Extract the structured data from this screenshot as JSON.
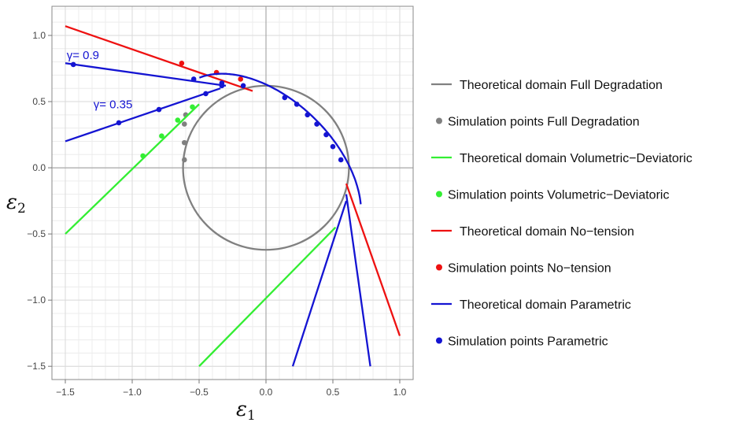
{
  "chart_data": {
    "type": "line",
    "xlabel": "ε",
    "xlabel_sub": "1",
    "ylabel": "ε",
    "ylabel_sub": "2",
    "xlim": [
      -1.6,
      1.1
    ],
    "ylim": [
      -1.6,
      1.22
    ],
    "xticks": [
      -1.5,
      -1.0,
      -0.5,
      0.0,
      0.5,
      1.0
    ],
    "yticks": [
      -1.5,
      -1.0,
      -0.5,
      0.0,
      0.5,
      1.0
    ],
    "xtick_labels": [
      "−1.5",
      "−1.0",
      "−0.5",
      "0.0",
      "0.5",
      "1.0"
    ],
    "ytick_labels": [
      "−1.5",
      "−1.0",
      "−0.5",
      "0.0",
      "0.5",
      "1.0"
    ],
    "grid": true,
    "legend_position": "right",
    "annotations": [
      {
        "text": "γ= 0.9",
        "x": -1.49,
        "y": 0.82
      },
      {
        "text": "γ= 0.35",
        "x": -1.29,
        "y": 0.45
      }
    ],
    "series": [
      {
        "name": "Theoretical domain Full Degradation",
        "kind": "line",
        "color": "#808080",
        "shape": "ellipse",
        "center": [
          0.0,
          0.0
        ],
        "semi_axes": [
          0.62,
          0.62
        ],
        "rotation_deg": 0
      },
      {
        "name": "Simulation points Full Degradation",
        "kind": "points",
        "color": "#808080",
        "points": [
          [
            -0.61,
            0.06
          ],
          [
            -0.61,
            0.19
          ],
          [
            -0.61,
            0.33
          ],
          [
            -0.6,
            0.4
          ]
        ]
      },
      {
        "name": "Theoretical domain Volumetric−Deviatoric",
        "kind": "segments",
        "color": "#33ee33",
        "segments": [
          [
            [
              -1.5,
              -0.5
            ],
            [
              -0.5,
              0.48
            ]
          ],
          [
            [
              -0.5,
              -1.5
            ],
            [
              0.52,
              -0.45
            ]
          ]
        ]
      },
      {
        "name": "Simulation points Volumetric−Deviatoric",
        "kind": "points",
        "color": "#33ee33",
        "points": [
          [
            -0.92,
            0.09
          ],
          [
            -0.78,
            0.24
          ],
          [
            -0.66,
            0.36
          ],
          [
            -0.55,
            0.46
          ]
        ]
      },
      {
        "name": "Theoretical domain No−tension",
        "kind": "segments",
        "color": "#ee1111",
        "segments": [
          [
            [
              -1.5,
              1.07
            ],
            [
              -0.1,
              0.58
            ]
          ],
          [
            [
              0.6,
              -0.12
            ],
            [
              1.0,
              -1.27
            ]
          ]
        ]
      },
      {
        "name": "Simulation points No−tension",
        "kind": "points",
        "color": "#ee1111",
        "points": [
          [
            -0.63,
            0.79
          ],
          [
            -0.37,
            0.72
          ],
          [
            -0.19,
            0.67
          ]
        ]
      },
      {
        "name": "Theoretical domain Parametric",
        "kind": "line",
        "color": "#1414d2",
        "shape": "rotated-ellipse-arc",
        "center": [
          0.0,
          0.0
        ],
        "semi_axes": [
          0.86,
          0.52
        ],
        "rotation_deg": -45,
        "segments": [
          [
            [
              -1.5,
              0.79
            ],
            [
              -0.3,
              0.62
            ]
          ],
          [
            [
              -1.5,
              0.2
            ],
            [
              -0.34,
              0.6
            ]
          ],
          [
            [
              0.2,
              -1.5
            ],
            [
              0.6,
              -0.25
            ]
          ],
          [
            [
              0.78,
              -1.5
            ],
            [
              0.6,
              -0.2
            ]
          ]
        ]
      },
      {
        "name": "Simulation points Parametric",
        "kind": "points",
        "color": "#1414d2",
        "points": [
          [
            -1.44,
            0.78
          ],
          [
            -0.54,
            0.67
          ],
          [
            -0.33,
            0.64
          ],
          [
            -1.1,
            0.34
          ],
          [
            -0.8,
            0.44
          ],
          [
            -0.45,
            0.56
          ],
          [
            -0.33,
            0.62
          ],
          [
            -0.17,
            0.62
          ],
          [
            0.14,
            0.53
          ],
          [
            0.23,
            0.48
          ],
          [
            0.31,
            0.4
          ],
          [
            0.38,
            0.33
          ],
          [
            0.45,
            0.25
          ],
          [
            0.5,
            0.16
          ],
          [
            0.56,
            0.06
          ]
        ]
      }
    ]
  }
}
